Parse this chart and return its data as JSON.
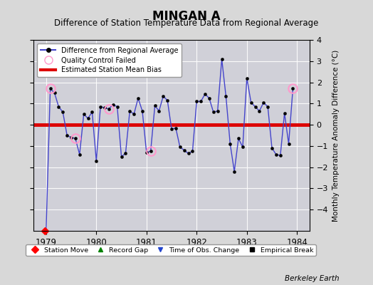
{
  "title": "MINGAN A",
  "subtitle": "Difference of Station Temperature Data from Regional Average",
  "ylabel": "Monthly Temperature Anomaly Difference (°C)",
  "xlabel_bottom": "Berkeley Earth",
  "xlim": [
    1978.75,
    1984.25
  ],
  "ylim": [
    -5,
    4
  ],
  "yticks": [
    -4,
    -3,
    -2,
    -1,
    0,
    1,
    2,
    3,
    4
  ],
  "xticks": [
    1979,
    1980,
    1981,
    1982,
    1983,
    1984
  ],
  "bias": 0.0,
  "line_color": "#4444cc",
  "bias_color": "#dd0000",
  "background_color": "#d8d8d8",
  "plot_bg_color": "#d0d0d8",
  "x": [
    1979.0,
    1979.083,
    1979.167,
    1979.25,
    1979.333,
    1979.417,
    1979.5,
    1979.583,
    1979.667,
    1979.75,
    1979.833,
    1979.917,
    1980.0,
    1980.083,
    1980.167,
    1980.25,
    1980.333,
    1980.417,
    1980.5,
    1980.583,
    1980.667,
    1980.75,
    1980.833,
    1980.917,
    1981.0,
    1981.083,
    1981.167,
    1981.25,
    1981.333,
    1981.417,
    1981.5,
    1981.583,
    1981.667,
    1981.75,
    1981.833,
    1981.917,
    1982.0,
    1982.083,
    1982.167,
    1982.25,
    1982.333,
    1982.417,
    1982.5,
    1982.583,
    1982.667,
    1982.75,
    1982.833,
    1982.917,
    1983.0,
    1983.083,
    1983.167,
    1983.25,
    1983.333,
    1983.417,
    1983.5,
    1983.583,
    1983.667,
    1983.75,
    1983.833,
    1983.917
  ],
  "y": [
    -5.0,
    1.7,
    1.5,
    0.85,
    0.6,
    -0.5,
    -0.6,
    -0.65,
    -1.4,
    0.5,
    0.3,
    0.6,
    -1.7,
    0.85,
    0.8,
    0.75,
    0.95,
    0.85,
    -1.5,
    -1.35,
    0.65,
    0.5,
    1.25,
    0.65,
    -1.3,
    -1.25,
    0.9,
    0.65,
    1.35,
    1.15,
    -0.2,
    -0.15,
    -1.05,
    -1.2,
    -1.35,
    -1.25,
    1.1,
    1.1,
    1.45,
    1.25,
    0.6,
    0.65,
    3.1,
    1.35,
    -0.9,
    -2.2,
    -0.65,
    -1.05,
    2.2,
    1.05,
    0.85,
    0.65,
    1.05,
    0.85,
    -1.1,
    -1.4,
    -1.45,
    0.55,
    -0.9,
    1.7
  ],
  "qc_failed_x": [
    1979.083,
    1979.583,
    1980.25,
    1981.083,
    1983.917
  ],
  "qc_failed_y": [
    1.7,
    -0.65,
    0.75,
    -1.25,
    1.7
  ],
  "station_move_x": [
    1978.97
  ],
  "station_move_y": [
    -5.0
  ]
}
